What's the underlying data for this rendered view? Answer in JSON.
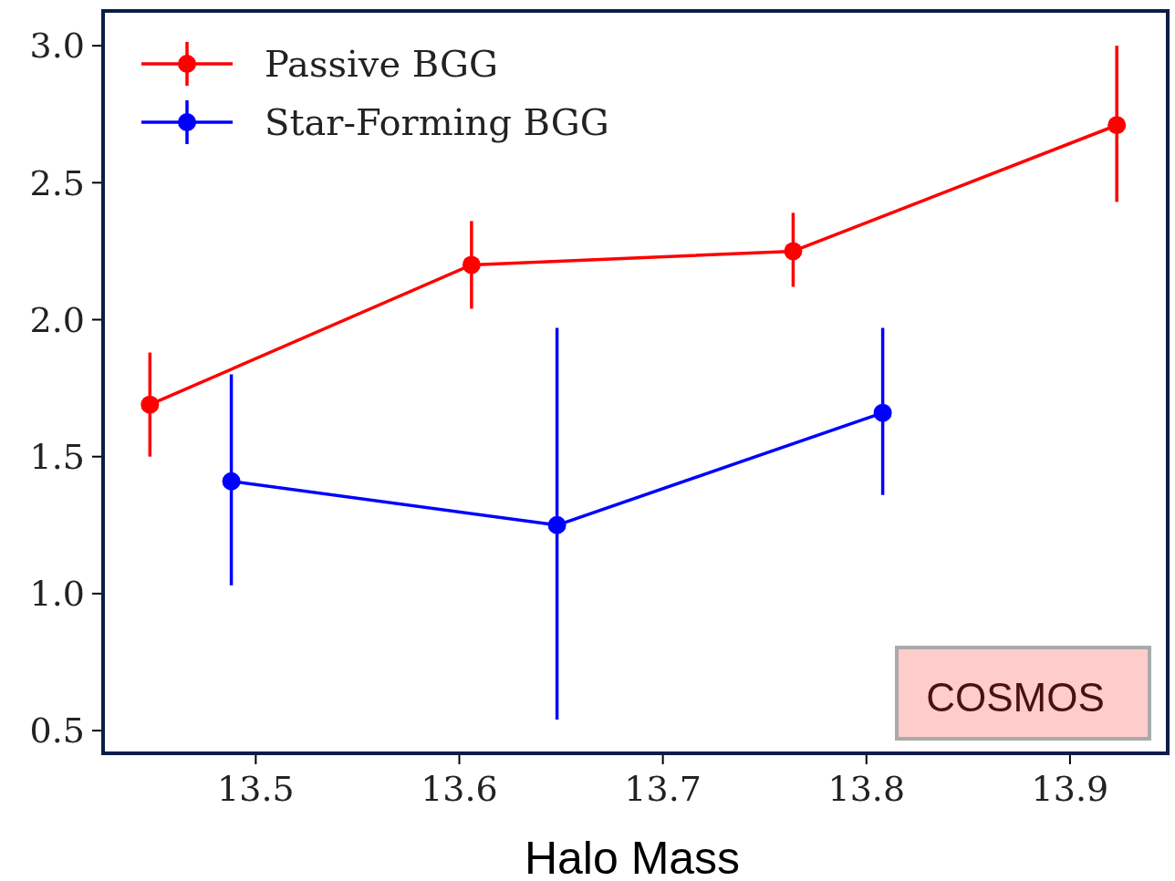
{
  "chart_data": {
    "type": "line",
    "xlabel": "Halo Mass",
    "xlim": [
      13.425,
      13.948
    ],
    "ylim": [
      0.417,
      3.127
    ],
    "xticks": [
      13.5,
      13.6,
      13.7,
      13.8,
      13.9
    ],
    "yticks": [
      0.5,
      {
        "value": 1,
        "label": "1.0"
      },
      1.5,
      {
        "value": 2,
        "label": "2.0"
      },
      2.5,
      {
        "value": 3,
        "label": "3.0"
      }
    ],
    "series": [
      {
        "name": "Passive BGG",
        "color": "#ff0000",
        "x": [
          13.448,
          13.606,
          13.764,
          13.923
        ],
        "values": [
          1.69,
          2.2,
          2.25,
          2.71
        ],
        "errors": [
          [
            1.5,
            1.88
          ],
          [
            2.04,
            2.36
          ],
          [
            2.12,
            2.39
          ],
          [
            2.43,
            3.0
          ]
        ]
      },
      {
        "name": "Star-Forming BGG",
        "color": "#0000ff",
        "x": [
          13.488,
          13.648,
          13.808
        ],
        "values": [
          1.41,
          1.25,
          1.66
        ],
        "errors": [
          [
            1.03,
            1.8
          ],
          [
            0.54,
            1.97
          ],
          [
            1.36,
            1.97
          ]
        ]
      }
    ],
    "marker": "circle",
    "grid": false,
    "legend": "top left",
    "annotations": [
      "COSMOS"
    ]
  }
}
